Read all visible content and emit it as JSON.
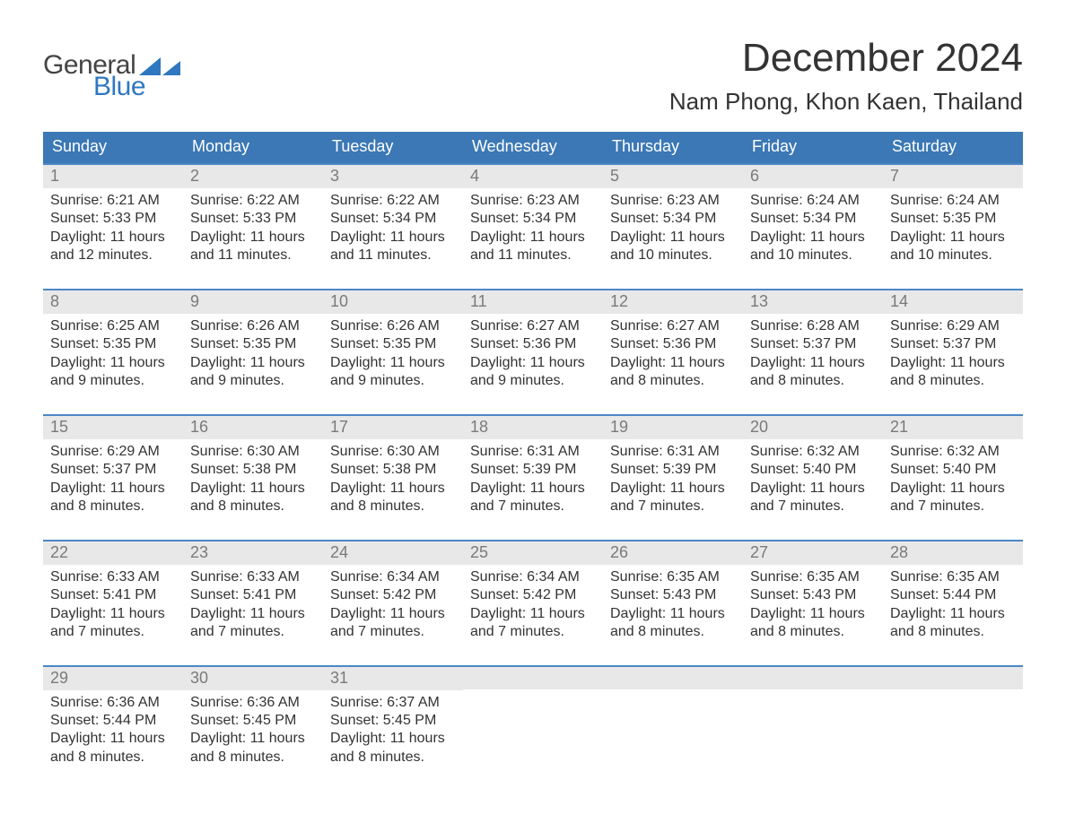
{
  "logo": {
    "line1": "General",
    "line2": "Blue",
    "mark_color": "#2f78c0"
  },
  "title": "December 2024",
  "location": "Nam Phong, Khon Kaen, Thailand",
  "days_of_week": [
    "Sunday",
    "Monday",
    "Tuesday",
    "Wednesday",
    "Thursday",
    "Friday",
    "Saturday"
  ],
  "colors": {
    "header_bg": "#3b78b5",
    "header_text": "#ffffff",
    "daynum_bg": "#e8e8e8",
    "daynum_text": "#7a7a7a",
    "row_border": "#4b87c4",
    "body_text": "#333333"
  },
  "calendar": {
    "type": "table",
    "weeks": [
      [
        {
          "n": 1,
          "sunrise": "6:21 AM",
          "sunset": "5:33 PM",
          "daylight": "11 hours and 12 minutes."
        },
        {
          "n": 2,
          "sunrise": "6:22 AM",
          "sunset": "5:33 PM",
          "daylight": "11 hours and 11 minutes."
        },
        {
          "n": 3,
          "sunrise": "6:22 AM",
          "sunset": "5:34 PM",
          "daylight": "11 hours and 11 minutes."
        },
        {
          "n": 4,
          "sunrise": "6:23 AM",
          "sunset": "5:34 PM",
          "daylight": "11 hours and 11 minutes."
        },
        {
          "n": 5,
          "sunrise": "6:23 AM",
          "sunset": "5:34 PM",
          "daylight": "11 hours and 10 minutes."
        },
        {
          "n": 6,
          "sunrise": "6:24 AM",
          "sunset": "5:34 PM",
          "daylight": "11 hours and 10 minutes."
        },
        {
          "n": 7,
          "sunrise": "6:24 AM",
          "sunset": "5:35 PM",
          "daylight": "11 hours and 10 minutes."
        }
      ],
      [
        {
          "n": 8,
          "sunrise": "6:25 AM",
          "sunset": "5:35 PM",
          "daylight": "11 hours and 9 minutes."
        },
        {
          "n": 9,
          "sunrise": "6:26 AM",
          "sunset": "5:35 PM",
          "daylight": "11 hours and 9 minutes."
        },
        {
          "n": 10,
          "sunrise": "6:26 AM",
          "sunset": "5:35 PM",
          "daylight": "11 hours and 9 minutes."
        },
        {
          "n": 11,
          "sunrise": "6:27 AM",
          "sunset": "5:36 PM",
          "daylight": "11 hours and 9 minutes."
        },
        {
          "n": 12,
          "sunrise": "6:27 AM",
          "sunset": "5:36 PM",
          "daylight": "11 hours and 8 minutes."
        },
        {
          "n": 13,
          "sunrise": "6:28 AM",
          "sunset": "5:37 PM",
          "daylight": "11 hours and 8 minutes."
        },
        {
          "n": 14,
          "sunrise": "6:29 AM",
          "sunset": "5:37 PM",
          "daylight": "11 hours and 8 minutes."
        }
      ],
      [
        {
          "n": 15,
          "sunrise": "6:29 AM",
          "sunset": "5:37 PM",
          "daylight": "11 hours and 8 minutes."
        },
        {
          "n": 16,
          "sunrise": "6:30 AM",
          "sunset": "5:38 PM",
          "daylight": "11 hours and 8 minutes."
        },
        {
          "n": 17,
          "sunrise": "6:30 AM",
          "sunset": "5:38 PM",
          "daylight": "11 hours and 8 minutes."
        },
        {
          "n": 18,
          "sunrise": "6:31 AM",
          "sunset": "5:39 PM",
          "daylight": "11 hours and 7 minutes."
        },
        {
          "n": 19,
          "sunrise": "6:31 AM",
          "sunset": "5:39 PM",
          "daylight": "11 hours and 7 minutes."
        },
        {
          "n": 20,
          "sunrise": "6:32 AM",
          "sunset": "5:40 PM",
          "daylight": "11 hours and 7 minutes."
        },
        {
          "n": 21,
          "sunrise": "6:32 AM",
          "sunset": "5:40 PM",
          "daylight": "11 hours and 7 minutes."
        }
      ],
      [
        {
          "n": 22,
          "sunrise": "6:33 AM",
          "sunset": "5:41 PM",
          "daylight": "11 hours and 7 minutes."
        },
        {
          "n": 23,
          "sunrise": "6:33 AM",
          "sunset": "5:41 PM",
          "daylight": "11 hours and 7 minutes."
        },
        {
          "n": 24,
          "sunrise": "6:34 AM",
          "sunset": "5:42 PM",
          "daylight": "11 hours and 7 minutes."
        },
        {
          "n": 25,
          "sunrise": "6:34 AM",
          "sunset": "5:42 PM",
          "daylight": "11 hours and 7 minutes."
        },
        {
          "n": 26,
          "sunrise": "6:35 AM",
          "sunset": "5:43 PM",
          "daylight": "11 hours and 8 minutes."
        },
        {
          "n": 27,
          "sunrise": "6:35 AM",
          "sunset": "5:43 PM",
          "daylight": "11 hours and 8 minutes."
        },
        {
          "n": 28,
          "sunrise": "6:35 AM",
          "sunset": "5:44 PM",
          "daylight": "11 hours and 8 minutes."
        }
      ],
      [
        {
          "n": 29,
          "sunrise": "6:36 AM",
          "sunset": "5:44 PM",
          "daylight": "11 hours and 8 minutes."
        },
        {
          "n": 30,
          "sunrise": "6:36 AM",
          "sunset": "5:45 PM",
          "daylight": "11 hours and 8 minutes."
        },
        {
          "n": 31,
          "sunrise": "6:37 AM",
          "sunset": "5:45 PM",
          "daylight": "11 hours and 8 minutes."
        },
        null,
        null,
        null,
        null
      ]
    ]
  },
  "labels": {
    "sunrise": "Sunrise: ",
    "sunset": "Sunset: ",
    "daylight": "Daylight: "
  }
}
